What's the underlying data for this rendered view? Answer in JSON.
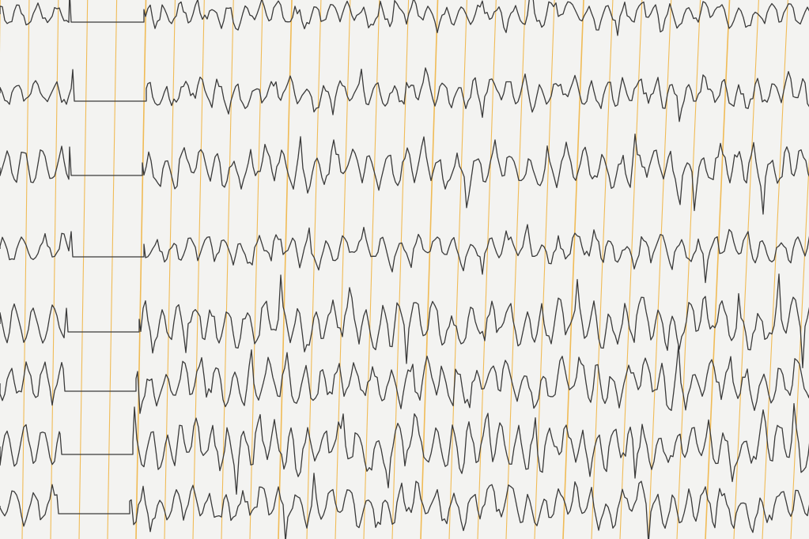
{
  "image": {
    "subject": "eeg-recording-paper",
    "paper_color": "#f3f3f1",
    "grid_color": "#f0b23c",
    "trace_color": "#3a3a3a",
    "channel_count": 8,
    "has_calibration_pulses": true
  }
}
